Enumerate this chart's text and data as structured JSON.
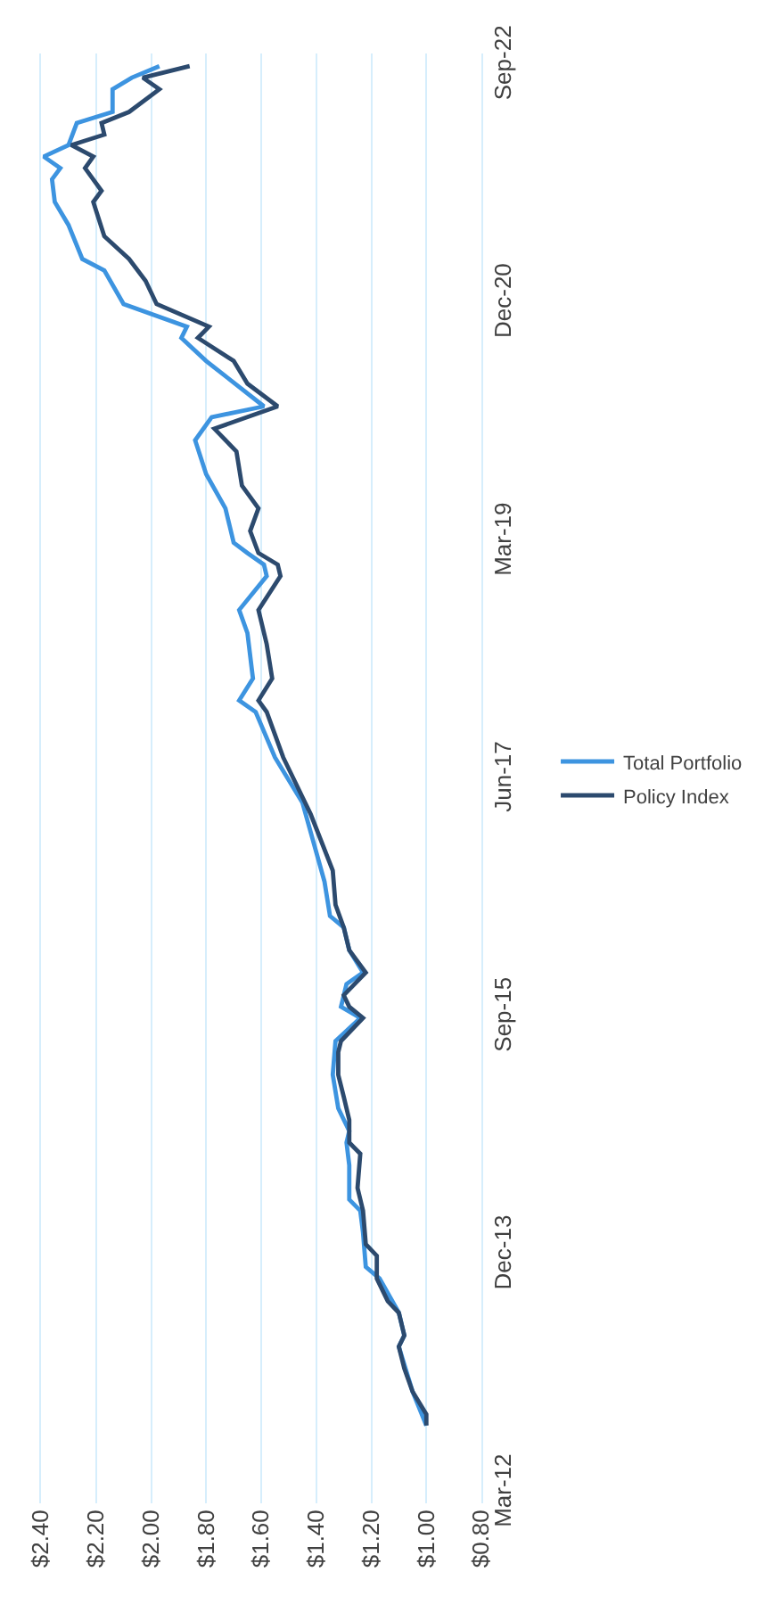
{
  "chart_data": {
    "type": "line",
    "orientation": "horizontal",
    "xlim": [
      2.4,
      0.8
    ],
    "xticks": [
      {
        "value": 0.8,
        "label": "$0.80"
      },
      {
        "value": 1.0,
        "label": "$1.00"
      },
      {
        "value": 1.2,
        "label": "$1.20"
      },
      {
        "value": 1.4,
        "label": "$1.40"
      },
      {
        "value": 1.6,
        "label": "$1.60"
      },
      {
        "value": 1.8,
        "label": "$1.80"
      },
      {
        "value": 2.0,
        "label": "$2.00"
      },
      {
        "value": 2.2,
        "label": "$2.20"
      },
      {
        "value": 2.4,
        "label": "$2.40"
      }
    ],
    "ylim": [
      "2012-02-05",
      "2022-10-05"
    ],
    "yticks": [
      {
        "value": "2012-03-01",
        "label": "Mar-12"
      },
      {
        "value": "2013-12-01",
        "label": "Dec-13"
      },
      {
        "value": "2015-09-01",
        "label": "Sep-15"
      },
      {
        "value": "2017-06-01",
        "label": "Jun-17"
      },
      {
        "value": "2019-03-01",
        "label": "Mar-19"
      },
      {
        "value": "2020-12-01",
        "label": "Dec-20"
      },
      {
        "value": "2022-09-01",
        "label": "Sep-22"
      }
    ],
    "grid": "x",
    "legend": "right",
    "marker": "none",
    "line_style": "solid",
    "series": [
      {
        "name": "Total Portfolio",
        "color": "#3d94e0",
        "x": [
          "2012-09",
          "2012-12",
          "2013-04",
          "2013-05",
          "2013-07",
          "2013-10",
          "2013-11",
          "2014-02",
          "2014-04",
          "2014-05",
          "2014-08",
          "2014-10",
          "2014-11",
          "2015-01",
          "2015-04",
          "2015-07",
          "2015-09",
          "2015-10",
          "2015-12",
          "2016-01",
          "2016-03",
          "2016-05",
          "2016-06",
          "2016-09",
          "2017-04",
          "2017-08",
          "2017-12",
          "2018-01",
          "2018-03",
          "2018-07",
          "2018-09",
          "2018-12",
          "2019-01",
          "2019-02",
          "2019-03",
          "2019-06",
          "2019-09",
          "2019-12",
          "2020-02",
          "2020-03",
          "2020-07",
          "2020-09",
          "2020-10",
          "2020-12",
          "2021-03",
          "2021-04",
          "2021-07",
          "2021-09",
          "2021-11",
          "2021-12",
          "2022-01",
          "2022-02",
          "2022-04",
          "2022-05",
          "2022-07",
          "2022-08",
          "2022-09"
        ],
        "values": [
          1.0,
          1.05,
          1.1,
          1.08,
          1.1,
          1.17,
          1.22,
          1.23,
          1.24,
          1.28,
          1.28,
          1.29,
          1.28,
          1.32,
          1.34,
          1.33,
          1.24,
          1.31,
          1.29,
          1.23,
          1.28,
          1.3,
          1.35,
          1.37,
          1.45,
          1.55,
          1.62,
          1.68,
          1.63,
          1.65,
          1.68,
          1.58,
          1.59,
          1.65,
          1.7,
          1.73,
          1.8,
          1.84,
          1.78,
          1.59,
          1.8,
          1.89,
          1.87,
          2.1,
          2.17,
          2.25,
          2.3,
          2.35,
          2.36,
          2.33,
          2.39,
          2.3,
          2.27,
          2.14,
          2.14,
          2.07,
          1.97
        ]
      },
      {
        "name": "Policy Index",
        "color": "#2c4a6e",
        "x": [
          "2012-09",
          "2012-10",
          "2012-12",
          "2013-02",
          "2013-04",
          "2013-05",
          "2013-07",
          "2013-08",
          "2013-10",
          "2013-12",
          "2014-01",
          "2014-04",
          "2014-06",
          "2014-09",
          "2014-10",
          "2014-12",
          "2015-02",
          "2015-04",
          "2015-06",
          "2015-07",
          "2015-09",
          "2015-10",
          "2015-11",
          "2016-01",
          "2016-03",
          "2016-05",
          "2016-07",
          "2016-10",
          "2017-03",
          "2017-08",
          "2017-12",
          "2018-01",
          "2018-03",
          "2018-06",
          "2018-09",
          "2018-12",
          "2019-01",
          "2019-02",
          "2019-04",
          "2019-06",
          "2019-08",
          "2019-11",
          "2020-01",
          "2020-03",
          "2020-05",
          "2020-07",
          "2020-09",
          "2020-10",
          "2020-12",
          "2021-02",
          "2021-04",
          "2021-06",
          "2021-09",
          "2021-10",
          "2021-12",
          "2022-01",
          "2022-02",
          "2022-03",
          "2022-04",
          "2022-05",
          "2022-07",
          "2022-08",
          "2022-09"
        ],
        "values": [
          1.0,
          1.0,
          1.05,
          1.08,
          1.1,
          1.08,
          1.1,
          1.14,
          1.18,
          1.18,
          1.22,
          1.23,
          1.25,
          1.24,
          1.28,
          1.28,
          1.3,
          1.32,
          1.32,
          1.31,
          1.23,
          1.28,
          1.3,
          1.22,
          1.28,
          1.3,
          1.33,
          1.34,
          1.42,
          1.52,
          1.58,
          1.61,
          1.56,
          1.58,
          1.61,
          1.53,
          1.54,
          1.61,
          1.64,
          1.61,
          1.67,
          1.69,
          1.77,
          1.54,
          1.65,
          1.7,
          1.83,
          1.79,
          1.98,
          2.02,
          2.08,
          2.17,
          2.21,
          2.18,
          2.24,
          2.21,
          2.29,
          2.17,
          2.18,
          2.08,
          1.97,
          2.03,
          1.86
        ]
      }
    ]
  }
}
